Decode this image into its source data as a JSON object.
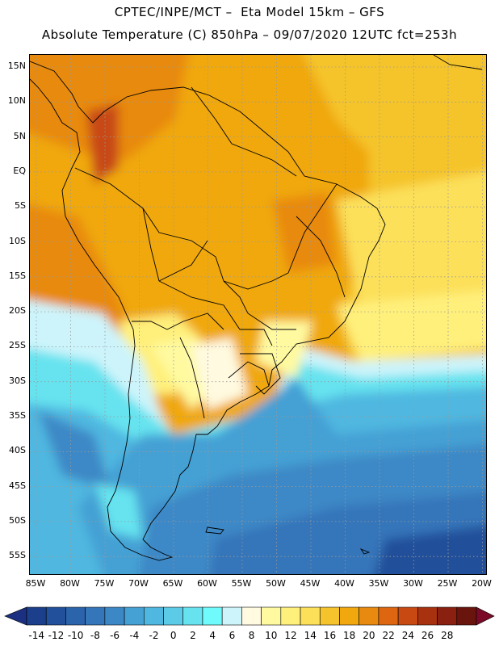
{
  "header": {
    "line1": "CPTEC/INPE/MCT –  Eta Model 15km – GFS",
    "line2": "Absolute Temperature (C) 850hPa – 09/07/2020 12UTC fct=253h"
  },
  "axes": {
    "lat_labels": [
      "15N",
      "10N",
      "5N",
      "EQ",
      "5S",
      "10S",
      "15S",
      "20S",
      "25S",
      "30S",
      "35S",
      "40S",
      "45S",
      "50S",
      "55S"
    ],
    "lon_labels": [
      "85W",
      "80W",
      "75W",
      "70W",
      "65W",
      "60W",
      "55W",
      "50W",
      "45W",
      "40W",
      "35W",
      "30W",
      "25W",
      "20W"
    ]
  },
  "colorbar": {
    "labels": [
      "-14",
      "-12",
      "-10",
      "-8",
      "-6",
      "-4",
      "-2",
      "0",
      "2",
      "4",
      "6",
      "8",
      "10",
      "12",
      "14",
      "16",
      "18",
      "20",
      "22",
      "24",
      "26",
      "28"
    ],
    "colors": [
      "#1b3f8b",
      "#23509a",
      "#2c64ab",
      "#3575b9",
      "#3c88c6",
      "#45a0d4",
      "#4fb7e0",
      "#5ccbe8",
      "#66e3ef",
      "#6ffbfb",
      "#cdf4fb",
      "#fffae0",
      "#fffaa0",
      "#fff07c",
      "#fce05a",
      "#f5c42c",
      "#f0a80e",
      "#e88a0f",
      "#de6610",
      "#c84a12",
      "#a8320f",
      "#8a2010",
      "#6a140e"
    ],
    "under_color": "#1b3080",
    "over_color": "#7a0a28"
  }
}
